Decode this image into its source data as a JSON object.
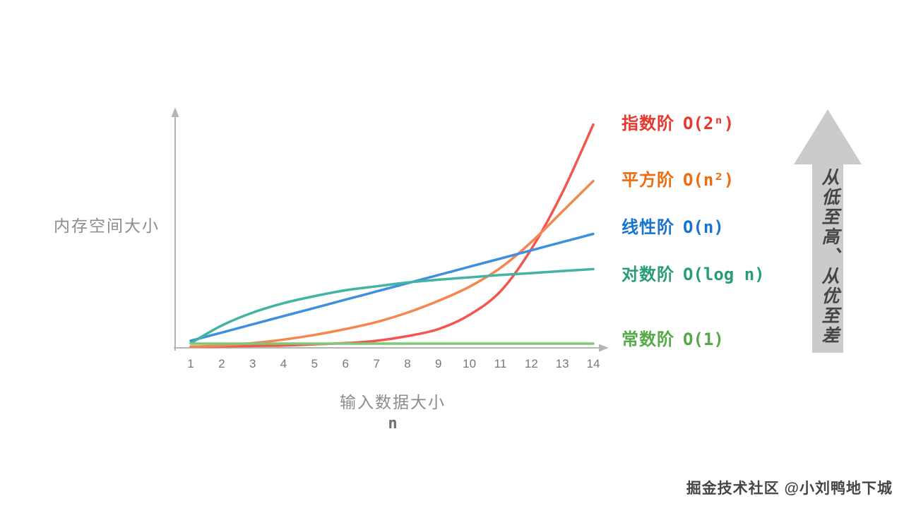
{
  "page": {
    "background": "#ffffff"
  },
  "watermark": {
    "text": "掘金技术社区 @小刘鸭地下城"
  },
  "direction_arrow": {
    "label": "从低至高、从优至差",
    "color": "#cbcbcb",
    "text_color": "#454545"
  },
  "chart_data": {
    "type": "line",
    "title": "",
    "xlabel": "输入数据大小",
    "xlabel_sub": "n",
    "ylabel": "内存空间大小",
    "x_range": [
      1,
      14
    ],
    "y_range": [
      0,
      10
    ],
    "x_ticks": [
      1,
      2,
      3,
      4,
      5,
      6,
      7,
      8,
      9,
      10,
      11,
      12,
      13,
      14
    ],
    "grid": false,
    "legend_position": "right",
    "axis_color": "#b5b5b5",
    "series": [
      {
        "id": "exponential",
        "label": "指数阶",
        "notation": "O(2ⁿ)",
        "curve_color": "#f2564f",
        "label_color": "#e8372c",
        "values": [
          0.05,
          0.06,
          0.08,
          0.1,
          0.15,
          0.2,
          0.3,
          0.5,
          0.8,
          1.4,
          2.4,
          4.2,
          6.6,
          9.5
        ]
      },
      {
        "id": "quadratic",
        "label": "平方阶",
        "notation": "O(n²)",
        "curve_color": "#f6854f",
        "label_color": "#ee6c0e",
        "values": [
          0.05,
          0.1,
          0.2,
          0.35,
          0.55,
          0.8,
          1.1,
          1.5,
          2.0,
          2.6,
          3.4,
          4.5,
          5.8,
          7.1
        ]
      },
      {
        "id": "linear",
        "label": "线性阶",
        "notation": "O(n)",
        "curve_color": "#3e8fe0",
        "label_color": "#1873cc",
        "values": [
          0.3,
          0.65,
          1.0,
          1.35,
          1.7,
          2.05,
          2.4,
          2.75,
          3.1,
          3.45,
          3.8,
          4.15,
          4.5,
          4.85
        ]
      },
      {
        "id": "logarithmic",
        "label": "对数阶",
        "notation": "O(log n)",
        "curve_color": "#43b3a4",
        "label_color": "#2a9d72",
        "values": [
          0.2,
          0.95,
          1.5,
          1.9,
          2.2,
          2.45,
          2.62,
          2.78,
          2.9,
          3.0,
          3.1,
          3.18,
          3.27,
          3.35
        ]
      },
      {
        "id": "constant",
        "label": "常数阶",
        "notation": "O(1)",
        "curve_color": "#7ec878",
        "label_color": "#55a946",
        "values": [
          0.18,
          0.18,
          0.18,
          0.18,
          0.18,
          0.18,
          0.18,
          0.18,
          0.18,
          0.18,
          0.18,
          0.18,
          0.18,
          0.18
        ]
      }
    ]
  }
}
